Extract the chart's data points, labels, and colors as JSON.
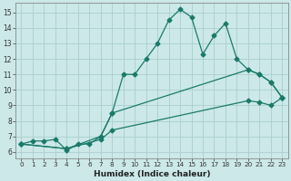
{
  "xlabel": "Humidex (Indice chaleur)",
  "bg_color": "#cce8e8",
  "grid_color": "#aacece",
  "line_color": "#1a7a6a",
  "xlim": [
    -0.5,
    23.5
  ],
  "ylim": [
    5.6,
    15.6
  ],
  "xticks": [
    0,
    1,
    2,
    3,
    4,
    5,
    6,
    7,
    8,
    9,
    10,
    11,
    12,
    13,
    14,
    15,
    16,
    17,
    18,
    19,
    20,
    21,
    22,
    23
  ],
  "yticks": [
    6,
    7,
    8,
    9,
    10,
    11,
    12,
    13,
    14,
    15
  ],
  "line1_x": [
    0,
    1,
    2,
    3,
    4,
    5,
    6,
    7,
    8,
    9,
    10,
    11,
    12,
    13,
    14,
    15,
    16,
    17,
    18,
    19,
    20,
    21,
    22,
    23
  ],
  "line1_y": [
    6.5,
    6.7,
    6.7,
    6.8,
    6.1,
    6.5,
    6.5,
    7.0,
    8.5,
    11.0,
    11.0,
    12.0,
    13.0,
    14.5,
    15.2,
    14.7,
    12.3,
    13.5,
    14.3,
    12.0,
    11.3,
    11.0,
    10.5,
    9.5
  ],
  "line2_x": [
    0,
    4,
    7,
    8,
    20,
    21,
    22,
    23
  ],
  "line2_y": [
    6.5,
    6.2,
    7.0,
    8.5,
    11.3,
    11.0,
    10.5,
    9.5
  ],
  "line3_x": [
    0,
    4,
    7,
    8,
    20,
    21,
    22,
    23
  ],
  "line3_y": [
    6.5,
    6.2,
    6.8,
    7.4,
    9.3,
    9.2,
    9.0,
    9.5
  ]
}
